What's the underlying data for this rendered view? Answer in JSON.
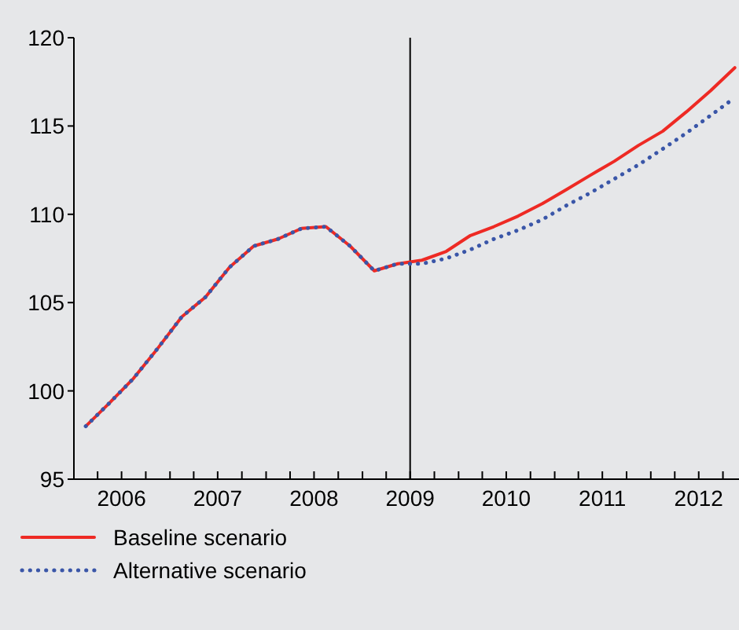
{
  "chart_data": {
    "type": "line",
    "x": [
      "2006-02-15",
      "2006-05-15",
      "2006-08-15",
      "2006-11-15",
      "2007-02-15",
      "2007-05-15",
      "2007-08-15",
      "2007-11-15",
      "2008-02-15",
      "2008-05-15",
      "2008-08-15",
      "2008-11-15",
      "2009-02-15",
      "2009-05-15",
      "2009-08-15",
      "2009-11-15",
      "2010-02-15",
      "2010-05-15",
      "2010-08-15",
      "2010-11-15",
      "2011-02-15",
      "2011-05-15",
      "2011-08-15",
      "2011-11-15",
      "2012-02-15",
      "2012-05-15",
      "2012-08-15",
      "2012-11-15"
    ],
    "series": [
      {
        "name": "Baseline scenario",
        "color": "#ee2a24",
        "line_style": "solid",
        "values": [
          98.0,
          99.3,
          100.7,
          102.4,
          104.2,
          105.3,
          107.0,
          108.2,
          108.6,
          109.2,
          109.3,
          108.2,
          106.8,
          107.2,
          107.4,
          107.9,
          108.8,
          109.3,
          109.9,
          110.6,
          111.4,
          112.2,
          113.0,
          113.9,
          114.7,
          115.8,
          117.0,
          118.3
        ]
      },
      {
        "name": "Alternative scenario",
        "color": "#3a56a8",
        "line_style": "dotted",
        "values": [
          98.0,
          99.3,
          100.7,
          102.4,
          104.2,
          105.3,
          107.0,
          108.2,
          108.6,
          109.2,
          109.3,
          108.2,
          106.8,
          107.2,
          107.2,
          107.5,
          108.0,
          108.6,
          109.1,
          109.7,
          110.5,
          111.2,
          112.0,
          112.8,
          113.7,
          114.6,
          115.6,
          116.6
        ]
      }
    ],
    "xlim": [
      "2006-01-01",
      "2012-12-01"
    ],
    "xticks": [
      {
        "value": "2006-04-01",
        "label": null
      },
      {
        "value": "2006-07-01",
        "label": "2006"
      },
      {
        "value": "2006-10-01",
        "label": null
      },
      {
        "value": "2007-01-01",
        "label": null
      },
      {
        "value": "2007-04-01",
        "label": null
      },
      {
        "value": "2007-07-01",
        "label": "2007"
      },
      {
        "value": "2007-10-01",
        "label": null
      },
      {
        "value": "2008-01-01",
        "label": null
      },
      {
        "value": "2008-04-01",
        "label": null
      },
      {
        "value": "2008-07-01",
        "label": "2008"
      },
      {
        "value": "2008-10-01",
        "label": null
      },
      {
        "value": "2009-01-01",
        "label": null
      },
      {
        "value": "2009-04-01",
        "label": null
      },
      {
        "value": "2009-07-01",
        "label": "2009"
      },
      {
        "value": "2009-10-01",
        "label": null
      },
      {
        "value": "2010-01-01",
        "label": null
      },
      {
        "value": "2010-04-01",
        "label": null
      },
      {
        "value": "2010-07-01",
        "label": "2010"
      },
      {
        "value": "2010-10-01",
        "label": null
      },
      {
        "value": "2011-01-01",
        "label": null
      },
      {
        "value": "2011-04-01",
        "label": null
      },
      {
        "value": "2011-07-01",
        "label": "2011"
      },
      {
        "value": "2011-10-01",
        "label": null
      },
      {
        "value": "2012-01-01",
        "label": null
      },
      {
        "value": "2012-04-01",
        "label": null
      },
      {
        "value": "2012-07-01",
        "label": "2012"
      },
      {
        "value": "2012-10-01",
        "label": null
      }
    ],
    "ylim": [
      95,
      120
    ],
    "yticks": [
      95,
      100,
      105,
      110,
      115,
      120
    ],
    "ref_lines": [
      {
        "axis": "x",
        "value": "2009-07-01",
        "color": "#000000"
      }
    ],
    "grid": false,
    "legend": "bottom left",
    "marker": "none"
  }
}
